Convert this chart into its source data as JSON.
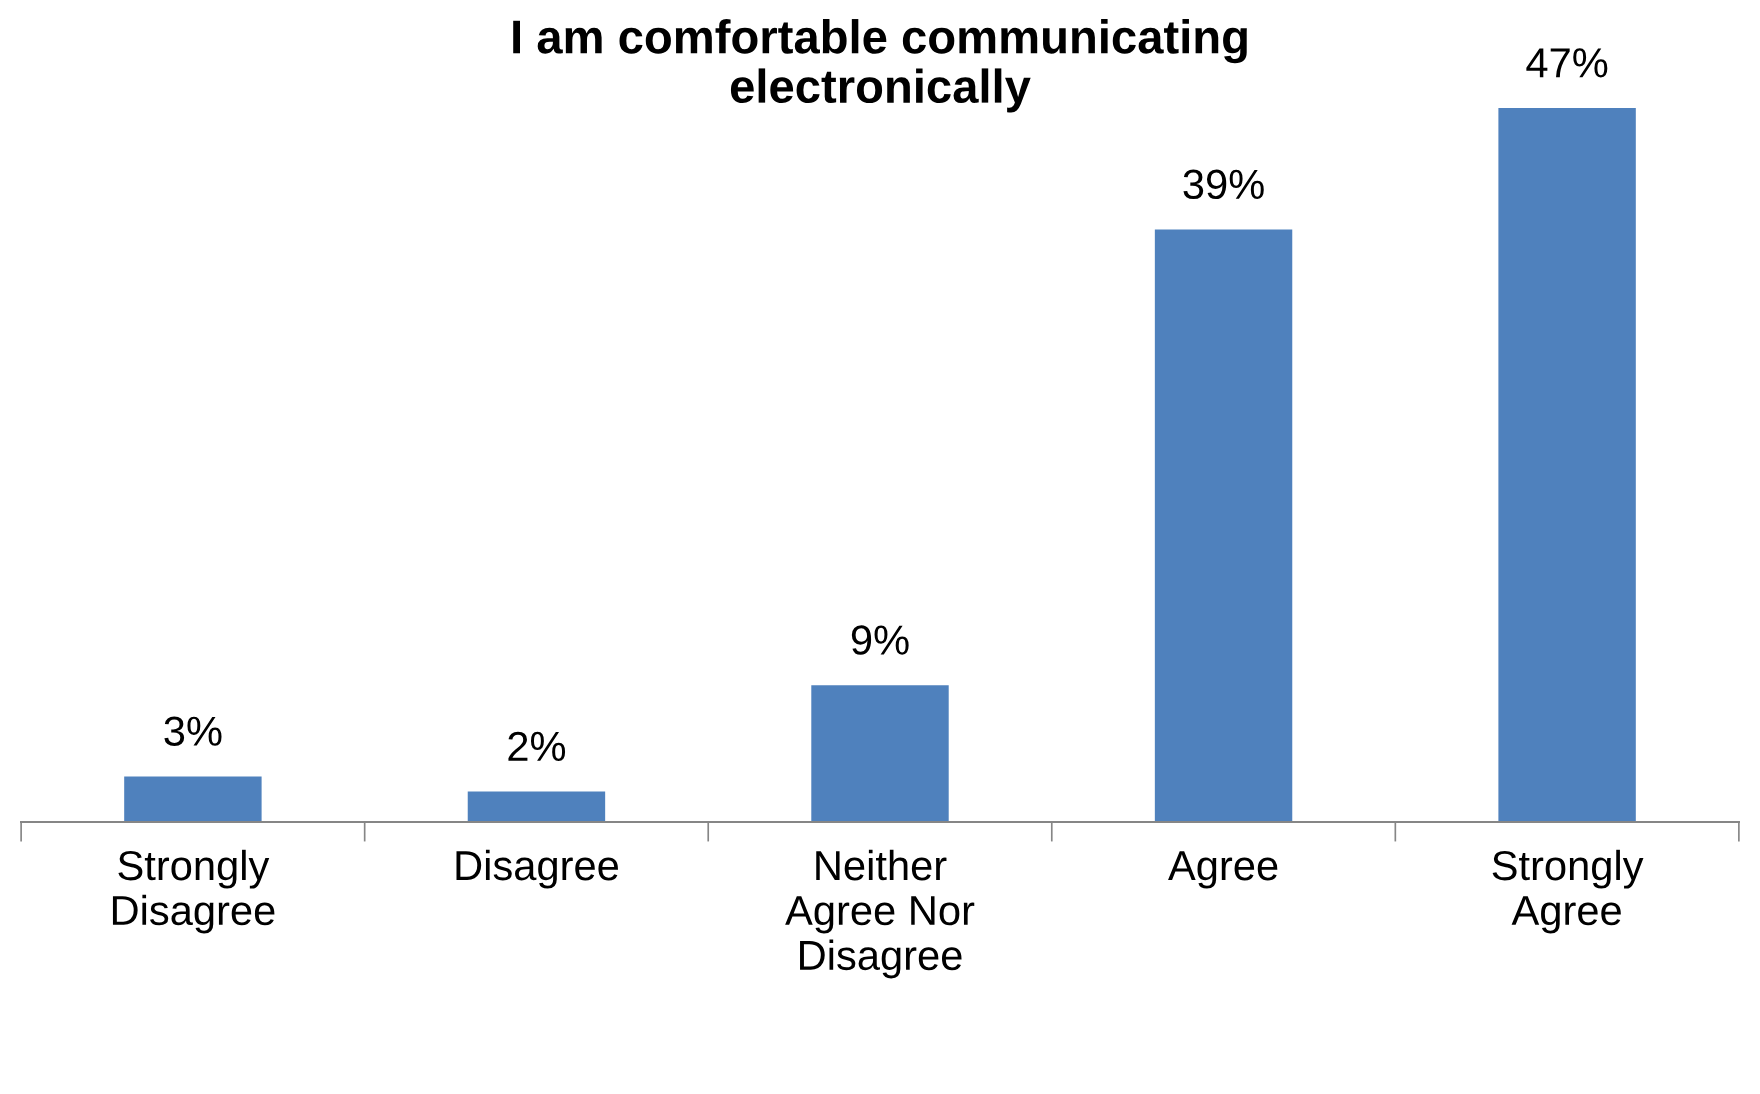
{
  "chart_data": {
    "type": "bar",
    "title": "I am comfortable communicating\nelectronically",
    "categories": [
      "Strongly\nDisagree",
      "Disagree",
      "Neither\nAgree Nor\nDisagree",
      "Agree",
      "Strongly\nAgree"
    ],
    "values": [
      3,
      2,
      9,
      39,
      47
    ],
    "value_labels": [
      "3%",
      "2%",
      "9%",
      "39%",
      "47%"
    ],
    "color": "#4f81bd",
    "grid": false,
    "legend": false
  }
}
